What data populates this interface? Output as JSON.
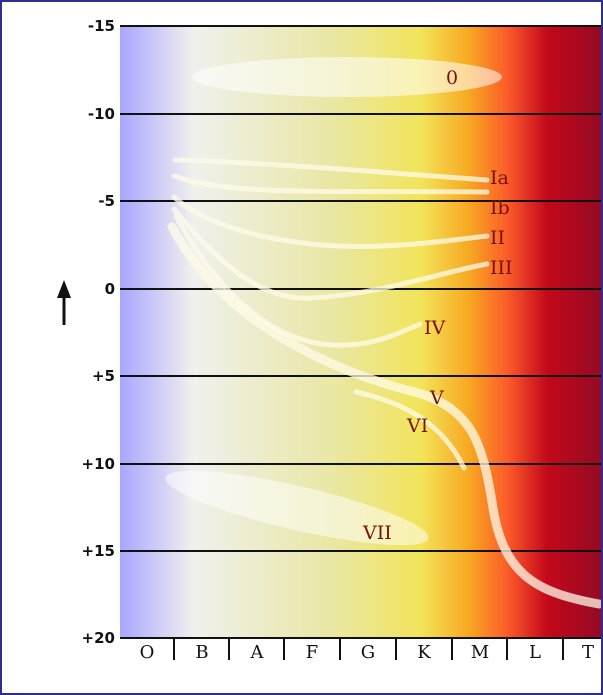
{
  "diagram": {
    "y_ticks": [
      "-15",
      "-10",
      "-5",
      "0",
      "+5",
      "+10",
      "+15",
      "+20"
    ],
    "x_labels": [
      "O",
      "B",
      "A",
      "F",
      "G",
      "K",
      "M",
      "L",
      "T"
    ],
    "classes": {
      "c0": "0",
      "ia": "Ia",
      "ib": "Ib",
      "ii": "II",
      "iii": "III",
      "iv": "IV",
      "v": "V",
      "vi": "VI",
      "vii": "VII"
    },
    "arrow_icon": "up-arrow-icon",
    "colors": {
      "border": "#2f2d8f",
      "label": "#7a1010",
      "gradient": [
        "#a9a6ff",
        "#f0f0ee",
        "#e9e7a0",
        "#f2e45a",
        "#f7a821",
        "#fb5a2a",
        "#c5081a",
        "#900a24"
      ]
    }
  }
}
